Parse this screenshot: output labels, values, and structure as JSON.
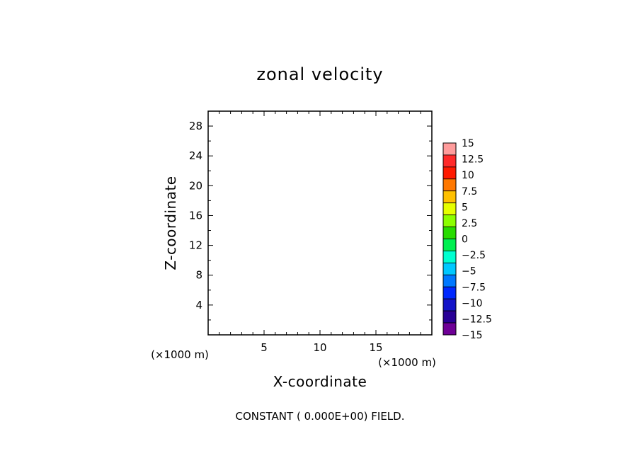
{
  "chart_data": {
    "type": "heatmap",
    "title": "zonal velocity",
    "xlabel": "X-coordinate",
    "ylabel": "Z-coordinate",
    "x_unit": "(×1000 m)",
    "y_unit": "(×1000 m)",
    "xlim": [
      0,
      20
    ],
    "ylim": [
      0,
      30
    ],
    "x_ticks": [
      5,
      10,
      15
    ],
    "y_ticks": [
      4,
      8,
      12,
      16,
      20,
      24,
      28
    ],
    "grid": false,
    "note": "CONSTANT ( 0.000E+00) FIELD.",
    "colorbar": {
      "labels": [
        "15",
        "12.5",
        "10",
        "7.5",
        "5",
        "2.5",
        "0",
        "−2.5",
        "−5",
        "−7.5",
        "−10",
        "−12.5",
        "−15"
      ],
      "colors": [
        "#ff9c9c",
        "#ff2a2a",
        "#ff1a00",
        "#ff7800",
        "#ffc000",
        "#e6ff00",
        "#8cff00",
        "#28dc00",
        "#00f050",
        "#00ffd0",
        "#00c8ff",
        "#0078ff",
        "#0028ff",
        "#1414c8",
        "#280096",
        "#6e0096"
      ]
    }
  }
}
